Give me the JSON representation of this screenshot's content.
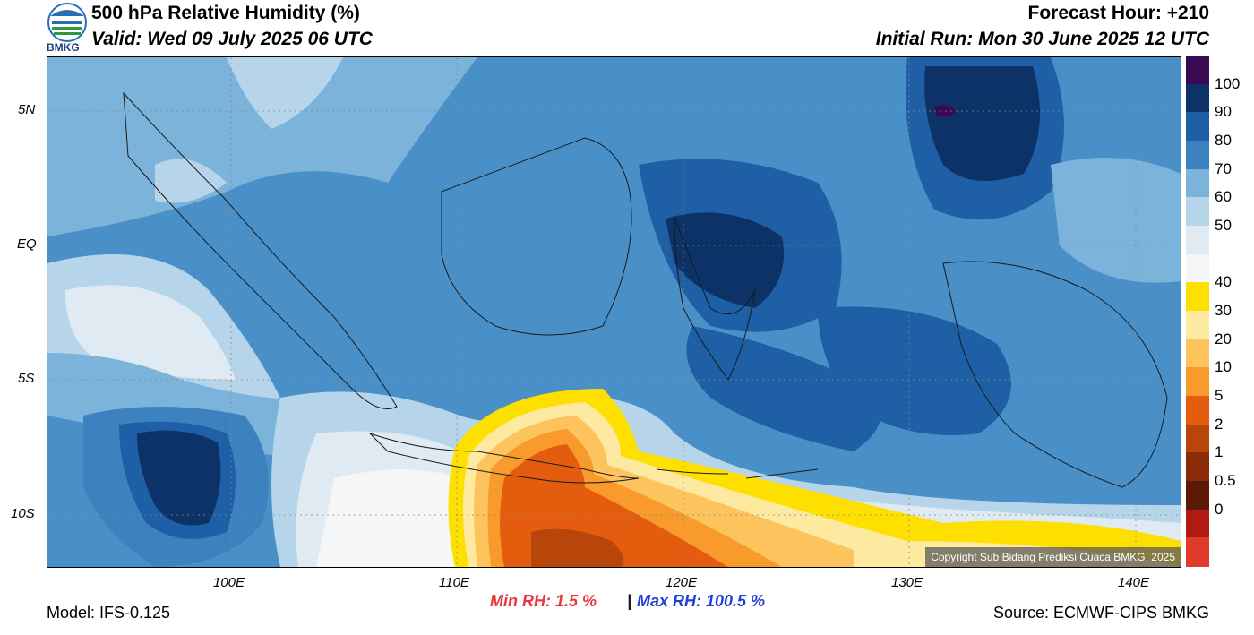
{
  "header": {
    "title": "500 hPa Relative Humidity (%)",
    "valid": "Valid: Wed 09 July 2025 06 UTC",
    "forecast_hour": "Forecast Hour: +210",
    "initial_run": "Initial Run: Mon 30 June 2025 12 UTC",
    "logo_text": "BMKG"
  },
  "map": {
    "lat_labels": [
      "5N",
      "EQ",
      "5S",
      "10S"
    ],
    "lon_labels": [
      "100E",
      "110E",
      "120E",
      "130E",
      "140E"
    ],
    "copyright": "Copyright Sub Bidang Prediksi Cuaca BMKG, 2025"
  },
  "colorbar": {
    "labels": [
      "100",
      "90",
      "80",
      "70",
      "60",
      "50",
      "40",
      "30",
      "20",
      "10",
      "5",
      "2",
      "1",
      "0.5",
      "0"
    ],
    "colors": [
      "#3a0a52",
      "#0d3268",
      "#1f5fa6",
      "#3b82bf",
      "#7bb3da",
      "#b6d5ea",
      "#dfeaf3",
      "#f4f6f7",
      "#fde000",
      "#fde9a0",
      "#fdc45e",
      "#f99b2c",
      "#e45d0f",
      "#b8460b",
      "#8a2b08",
      "#5c1905",
      "#b01a12",
      "#e03a2c"
    ]
  },
  "footer": {
    "model": "Model: IFS-0.125",
    "min_rh": "Min RH:   1.5 %",
    "separator": "|",
    "max_rh": "Max RH: 100.5 %",
    "source": "Source: ECMWF-CIPS BMKG"
  },
  "colors": {
    "min_rh": "#e8383d",
    "max_rh": "#1f3fd6"
  }
}
